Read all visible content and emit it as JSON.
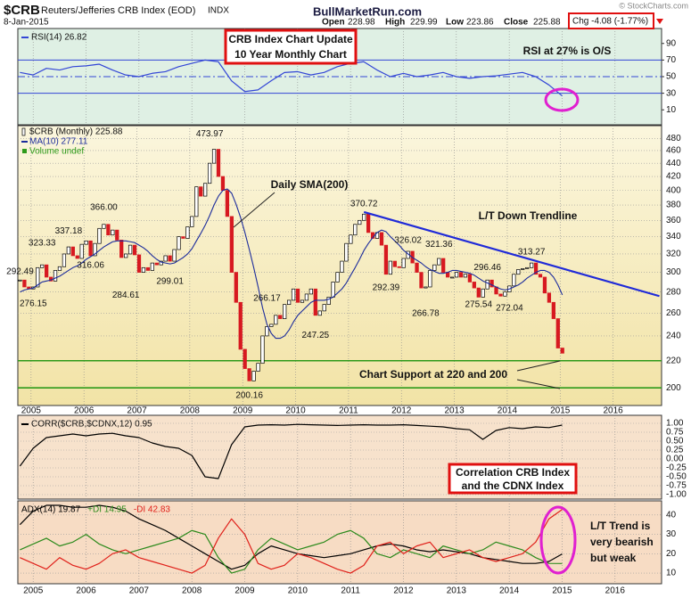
{
  "header": {
    "symbol": "$CRB",
    "name": "Reuters/Jefferies CRB Index (EOD)",
    "exchange": "INDX",
    "date": "8-Jan-2015",
    "site": "BullMarketRun.com",
    "quote": [
      {
        "label": "Open",
        "value": 228.98
      },
      {
        "label": "High",
        "value": 229.99
      },
      {
        "label": "Low",
        "value": 223.86
      },
      {
        "label": "Close",
        "value": 225.88
      }
    ],
    "change": "Chg -4.08 (-1.77%)",
    "copyright": "© StockCharts.com"
  },
  "chart_data": [
    {
      "type": "line",
      "series": [
        {
          "name": "RSI(14) 26.82",
          "color": "#3346d6",
          "values": [
            55,
            52,
            60,
            58,
            62,
            63,
            65,
            58,
            52,
            50,
            54,
            56,
            62,
            66,
            70,
            68,
            45,
            32,
            34,
            45,
            55,
            56,
            52,
            55,
            62,
            66,
            68,
            58,
            50,
            54,
            50,
            52,
            55,
            50,
            48,
            50,
            51,
            53,
            55,
            50,
            40,
            26.82
          ]
        }
      ],
      "x": [
        2004.75,
        2005,
        2005.25,
        2005.5,
        2005.75,
        2006,
        2006.25,
        2006.5,
        2006.75,
        2007,
        2007.25,
        2007.5,
        2007.75,
        2008,
        2008.25,
        2008.5,
        2008.75,
        2009,
        2009.25,
        2009.5,
        2009.75,
        2010,
        2010.25,
        2010.5,
        2010.75,
        2011,
        2011.25,
        2011.5,
        2011.75,
        2012,
        2012.25,
        2012.5,
        2012.75,
        2013,
        2013.25,
        2013.5,
        2013.75,
        2014,
        2014.25,
        2014.5,
        2014.75,
        2015
      ],
      "xlim": [
        2004.71,
        2016.88
      ],
      "ylim": [
        -8,
        108
      ],
      "yticks": [
        10,
        30,
        50,
        70,
        90
      ],
      "grid": false,
      "levels": [
        70,
        50,
        30
      ],
      "level_color": "#3346d6",
      "annotations": [
        "CRB Index Chart Update",
        "10 Year Monthly Chart",
        "RSI at 27% is O/S"
      ]
    },
    {
      "type": "candlestick",
      "log_scale": true,
      "grid": true,
      "up_color": "#ffffff",
      "down_color": "#d71920",
      "categories": [
        null,
        null,
        null,
        "2005",
        null,
        null,
        null,
        null,
        null,
        null,
        null,
        null,
        null,
        null,
        null,
        "2006",
        null,
        null,
        null,
        null,
        null,
        null,
        null,
        null,
        null,
        null,
        null,
        "2007",
        null,
        null,
        null,
        null,
        null,
        null,
        null,
        null,
        null,
        null,
        null,
        "2008",
        null,
        null,
        null,
        null,
        null,
        null,
        null,
        null,
        null,
        null,
        null,
        "2009",
        null,
        null,
        null,
        null,
        null,
        null,
        null,
        null,
        null,
        null,
        null,
        "2010",
        null,
        null,
        null,
        null,
        null,
        null,
        null,
        null,
        null,
        null,
        null,
        "2011",
        null,
        null,
        null,
        null,
        null,
        null,
        null,
        null,
        null,
        null,
        null,
        "2012",
        null,
        null,
        null,
        null,
        null,
        null,
        null,
        null,
        null,
        null,
        null,
        "2013",
        null,
        null,
        null,
        null,
        null,
        null,
        null,
        null,
        null,
        null,
        null,
        "2014",
        null,
        null,
        null,
        null,
        null,
        null,
        null,
        null,
        null,
        null,
        null,
        "2015",
        null,
        null,
        null,
        null,
        null,
        null,
        null,
        null,
        null,
        null,
        null,
        "2016",
        null,
        null,
        null,
        null,
        null,
        null,
        null,
        null,
        null,
        null
      ],
      "series": [
        {
          "name": "$CRB (Monthly) 225.88",
          "color": "#000000",
          "values": [
            292,
            285,
            283,
            285,
            305,
            308,
            295,
            291,
            302,
            306,
            320,
            328,
            318,
            315,
            331,
            335,
            318,
            332,
            350,
            355,
            342,
            348,
            336,
            316,
            320,
            330,
            319,
            300,
            305,
            302,
            310,
            308,
            312,
            318,
            312,
            325,
            340,
            338,
            352,
            365,
            405,
            392,
            410,
            440,
            462,
            420,
            400,
            365,
            300,
            270,
            229,
            214,
            205,
            212,
            218,
            240,
            248,
            250,
            258,
            255,
            268,
            272,
            283,
            270,
            272,
            278,
            283,
            258,
            262,
            268,
            275,
            290,
            300,
            312,
            332,
            342,
            355,
            360,
            368,
            345,
            338,
            345,
            330,
            298,
            312,
            306,
            305,
            315,
            323,
            310,
            300,
            284,
            285,
            302,
            308,
            315,
            300,
            295,
            295,
            300,
            295,
            298,
            290,
            284,
            275,
            283,
            292,
            285,
            278,
            276,
            280,
            286,
            298,
            303,
            304,
            305,
            310,
            298,
            295,
            279,
            270,
            255,
            230,
            225.88,
            null,
            null,
            null,
            null,
            null,
            null,
            null,
            null,
            null,
            null,
            null,
            null,
            null,
            null,
            null,
            null,
            null,
            null,
            null,
            null,
            null,
            null
          ]
        },
        {
          "name": "MA(10) 277.11",
          "color": "#1c2c9c",
          "values": [
            280,
            282,
            283,
            284,
            287,
            290,
            291,
            292,
            294,
            296,
            299,
            302,
            305,
            307,
            310,
            314,
            317,
            320,
            324,
            328,
            331,
            334,
            335,
            335,
            335,
            334,
            333,
            330,
            327,
            323,
            318,
            314,
            311,
            310,
            309,
            310,
            313,
            316,
            320,
            326,
            335,
            344,
            354,
            366,
            380,
            392,
            400,
            402,
            396,
            381,
            364,
            345,
            325,
            305,
            285,
            265,
            250,
            242,
            238,
            238,
            240,
            245,
            252,
            258,
            262,
            266,
            270,
            272,
            272,
            272,
            273,
            275,
            279,
            283,
            289,
            297,
            305,
            314,
            324,
            332,
            339,
            345,
            348,
            346,
            340,
            335,
            330,
            324,
            320,
            316,
            313,
            310,
            306,
            303,
            301,
            299,
            299,
            300,
            302,
            302,
            301,
            300,
            299,
            297,
            294,
            291,
            289,
            287,
            285,
            283,
            282,
            283,
            285,
            287,
            290,
            294,
            297,
            300,
            302,
            302,
            300,
            295,
            287,
            277.11,
            null,
            null,
            null,
            null,
            null,
            null,
            null,
            null,
            null,
            null,
            null,
            null,
            null,
            null,
            null,
            null,
            null,
            null,
            null,
            null,
            null,
            null
          ]
        }
      ],
      "volume_label": "Volume undef",
      "ylim": [
        188,
        502
      ],
      "yticks": [
        200,
        220,
        240,
        260,
        280,
        300,
        320,
        340,
        360,
        380,
        400,
        420,
        440,
        460,
        480
      ],
      "trendline": {
        "x": [
          78,
          145
        ],
        "values": [
          370.72,
          276
        ],
        "color": "#1f2ad8"
      },
      "support_levels": [
        220,
        200
      ],
      "support_color": "#2e9a1a",
      "point_labels": [
        {
          "x": 0,
          "value": 292.49,
          "pos": "above"
        },
        {
          "x": 3,
          "value": 276.15,
          "pos": "below"
        },
        {
          "x": 5,
          "value": 323.33,
          "pos": "above"
        },
        {
          "x": 11,
          "value": 337.18,
          "pos": "above"
        },
        {
          "x": 19,
          "value": 366,
          "label": "366.00",
          "pos": "above"
        },
        {
          "x": 16,
          "value": 316.06,
          "pos": "below"
        },
        {
          "x": 24,
          "value": 284.61,
          "pos": "below"
        },
        {
          "x": 34,
          "value": 299.01,
          "pos": "below"
        },
        {
          "x": 43,
          "value": 473.97,
          "pos": "above"
        },
        {
          "x": 52,
          "value": 200.16,
          "pos": "below"
        },
        {
          "x": 56,
          "value": 266.17,
          "pos": "above"
        },
        {
          "x": 67,
          "value": 247.25,
          "pos": "below"
        },
        {
          "x": 78,
          "value": 370.72,
          "pos": "above"
        },
        {
          "x": 83,
          "value": 292.39,
          "pos": "below"
        },
        {
          "x": 88,
          "value": 326.02,
          "pos": "above"
        },
        {
          "x": 92,
          "value": 266.78,
          "pos": "below"
        },
        {
          "x": 95,
          "value": 321.36,
          "pos": "above"
        },
        {
          "x": 104,
          "value": 275.54,
          "pos": "below"
        },
        {
          "x": 106,
          "value": 296.46,
          "pos": "above"
        },
        {
          "x": 111,
          "value": 272.04,
          "pos": "below"
        },
        {
          "x": 116,
          "value": 313.27,
          "pos": "above"
        }
      ],
      "annotations": [
        "Daily SMA(200)",
        "L/T Down Trendline",
        "Chart Support at 220 and 200"
      ]
    },
    {
      "type": "line",
      "series": [
        {
          "name": "CORR($CRB,$CDNX,12) 0.95",
          "color": "#000000",
          "values": [
            -0.2,
            0.3,
            0.6,
            0.65,
            0.7,
            0.65,
            0.7,
            0.72,
            0.65,
            0.6,
            0.45,
            0.35,
            0.3,
            0.1,
            -0.5,
            -0.55,
            0.4,
            0.9,
            0.95,
            0.96,
            0.95,
            0.97,
            0.96,
            0.95,
            0.94,
            0.95,
            0.96,
            0.95,
            0.95,
            0.96,
            0.94,
            0.92,
            0.9,
            0.85,
            0.82,
            0.55,
            0.8,
            0.88,
            0.85,
            0.9,
            0.88,
            0.95
          ]
        }
      ],
      "x": [
        2004.75,
        2005,
        2005.25,
        2005.5,
        2005.75,
        2006,
        2006.25,
        2006.5,
        2006.75,
        2007,
        2007.25,
        2007.5,
        2007.75,
        2008,
        2008.25,
        2008.5,
        2008.75,
        2009,
        2009.25,
        2009.5,
        2009.75,
        2010,
        2010.25,
        2010.5,
        2010.75,
        2011,
        2011.25,
        2011.5,
        2011.75,
        2012,
        2012.25,
        2012.5,
        2012.75,
        2013,
        2013.25,
        2013.5,
        2013.75,
        2014,
        2014.25,
        2014.5,
        2014.75,
        2015
      ],
      "xlim": [
        2004.71,
        2016.88
      ],
      "ylim": [
        -1.125,
        1.225
      ],
      "grid": true,
      "yticks": [
        {
          "value": 1,
          "label": "1.00"
        },
        0.75,
        {
          "value": 0.5,
          "label": "0.50"
        },
        0.25,
        {
          "value": 0,
          "label": "0.00"
        },
        -0.25,
        {
          "value": -0.5,
          "label": "-0.50"
        },
        -0.75,
        {
          "value": -1,
          "label": "-1.00"
        }
      ],
      "annotations": [
        "Correlation CRB Index",
        "and the CDNX Index"
      ]
    },
    {
      "type": "line",
      "legend_colored": true,
      "series": [
        {
          "name": "ADX(14) 19.87",
          "color": "#000000",
          "values": [
            35,
            42,
            45,
            45,
            44,
            44,
            45,
            44,
            42,
            38,
            35,
            32,
            28,
            24,
            20,
            16,
            12,
            14,
            20,
            24,
            22,
            20,
            19,
            18,
            19,
            20,
            22,
            24,
            25,
            24,
            22,
            21,
            22,
            21,
            20,
            18,
            17,
            16,
            15,
            15,
            16,
            19.87
          ]
        },
        {
          "name": "+DI 14.95",
          "color": "#2c8a1c",
          "values": [
            22,
            25,
            28,
            24,
            26,
            30,
            25,
            22,
            20,
            22,
            24,
            26,
            28,
            32,
            30,
            18,
            10,
            12,
            22,
            28,
            25,
            22,
            24,
            26,
            30,
            32,
            28,
            20,
            18,
            22,
            20,
            18,
            24,
            22,
            20,
            22,
            26,
            24,
            22,
            18,
            15,
            14.95
          ]
        },
        {
          "name": "-DI 42.83",
          "color": "#e0201a",
          "values": [
            18,
            15,
            12,
            18,
            14,
            12,
            15,
            20,
            22,
            18,
            16,
            14,
            12,
            10,
            14,
            28,
            38,
            30,
            15,
            12,
            14,
            20,
            18,
            15,
            12,
            10,
            14,
            24,
            26,
            20,
            24,
            26,
            18,
            20,
            22,
            18,
            16,
            18,
            20,
            26,
            38,
            42.83
          ]
        }
      ],
      "x": [
        2004.75,
        2005,
        2005.25,
        2005.5,
        2005.75,
        2006,
        2006.25,
        2006.5,
        2006.75,
        2007,
        2007.25,
        2007.5,
        2007.75,
        2008,
        2008.25,
        2008.5,
        2008.75,
        2009,
        2009.25,
        2009.5,
        2009.75,
        2010,
        2010.25,
        2010.5,
        2010.75,
        2011,
        2011.25,
        2011.5,
        2011.75,
        2012,
        2012.25,
        2012.5,
        2012.75,
        2013,
        2013.25,
        2013.5,
        2013.75,
        2014,
        2014.25,
        2014.5,
        2014.75,
        2015
      ],
      "xlim": [
        2004.71,
        2016.88
      ],
      "xticks": [
        2005,
        2006,
        2007,
        2008,
        2009,
        2010,
        2011,
        2012,
        2013,
        2014,
        2015,
        2016
      ],
      "ylim": [
        4.5,
        47.3
      ],
      "yticks": [
        10,
        20,
        30,
        40
      ],
      "grid": true,
      "annotations": [
        "L/T Trend is",
        "very bearish",
        "but weak"
      ]
    }
  ]
}
